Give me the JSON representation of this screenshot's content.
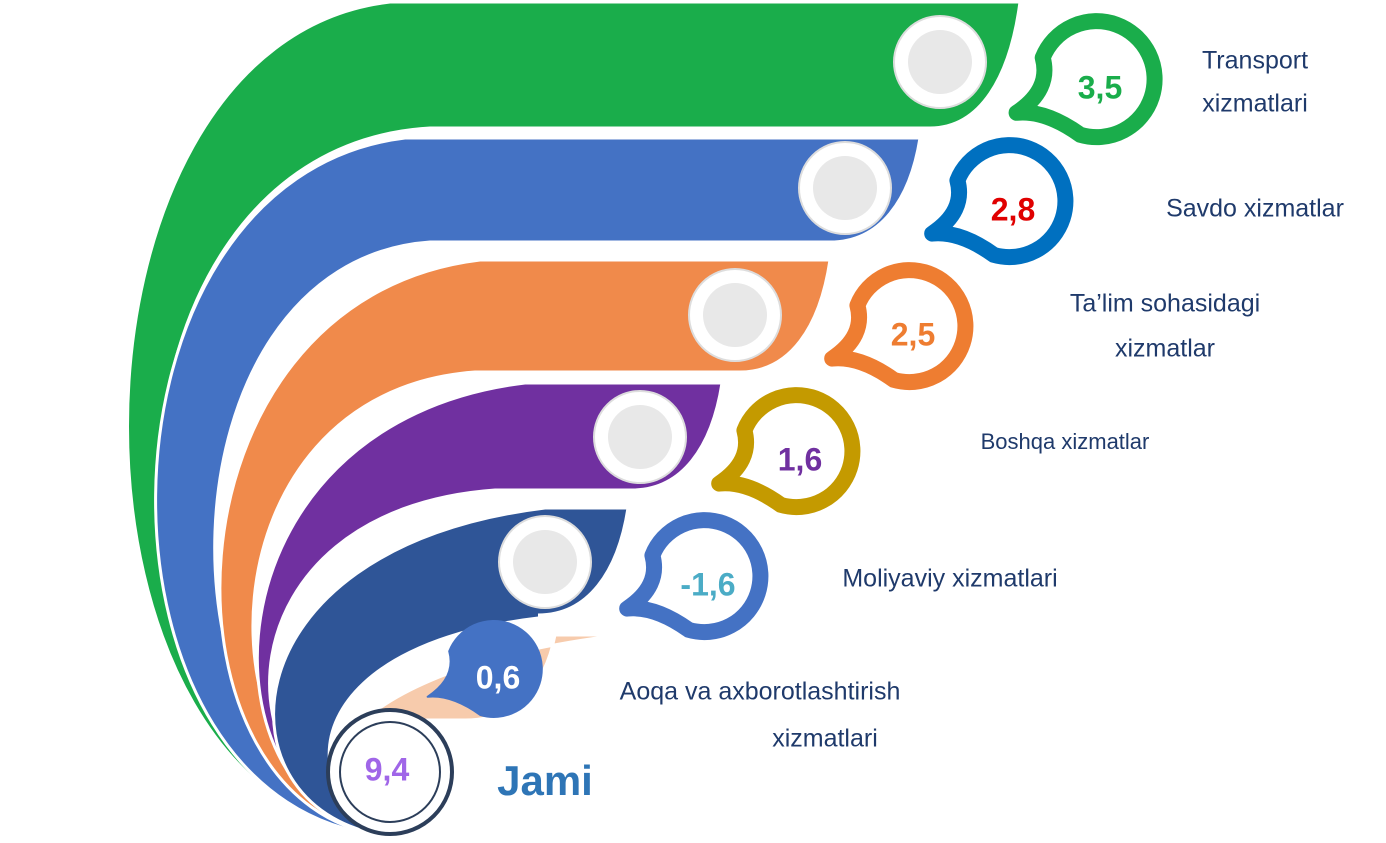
{
  "items": [
    {
      "label": [
        "Transport",
        "xizmatlari"
      ],
      "value": "3,5"
    },
    {
      "label": [
        "Savdo xizmatlar"
      ],
      "value": "2,8"
    },
    {
      "label": [
        "Ta’lim sohasidagi",
        "xizmatlar"
      ],
      "value": "2,5"
    },
    {
      "label": [
        "Boshqa xizmatlar"
      ],
      "value": "1,6"
    },
    {
      "label": [
        "Moliyaviy xizmatlari"
      ],
      "value": "-1,6"
    },
    {
      "label": [
        "Aoqa va axborotlashtirish",
        "xizmatlari"
      ],
      "value": "0,6"
    }
  ],
  "total": {
    "label": "Jami",
    "value": "9,4"
  }
}
